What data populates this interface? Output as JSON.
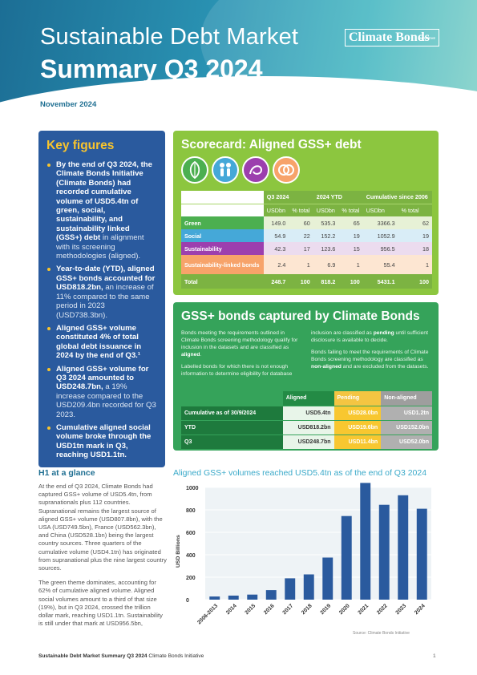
{
  "header": {
    "title_line1": "Sustainable Debt Market",
    "title_line2": "Summary Q3 2024",
    "date": "November 2024",
    "logo": "Climate Bonds",
    "logo_small": "INITIATIVE"
  },
  "key_figures": {
    "title": "Key figures",
    "items": [
      {
        "bold": "By the end of Q3 2024, the Climate Bonds Initiative (Climate Bonds) had recorded cumulative volume of USD5.4tn of green, social, sustainability, and sustainability linked (GSS+) debt",
        "normal": " in alignment with its screening methodologies (aligned)."
      },
      {
        "bold": "Year-to-date (YTD), aligned GSS+ bonds accounted for USD818.2bn,",
        "normal": " an increase of 11% compared to the same period in 2023 (USD738.3bn)."
      },
      {
        "bold": "Aligned GSS+ volume constituted 4% of total global debt issuance in 2024 by the end of Q3.¹",
        "normal": ""
      },
      {
        "bold": "Aligned GSS+ volume for Q3 2024 amounted to USD248.7bn,",
        "normal": " a 19% increase compared to the USD209.4bn recorded for Q3 2023."
      },
      {
        "bold": "Cumulative aligned social volume broke through the USD1tn mark in Q3, reaching USD1.1tn.",
        "normal": ""
      }
    ]
  },
  "scorecard": {
    "title": "Scorecard: Aligned GSS+ debt",
    "icons": [
      "leaf-icon",
      "people-icon",
      "sustainability-swirl-icon",
      "linked-rings-icon"
    ],
    "colors": {
      "green": "#4caf50",
      "social": "#45a8d8",
      "sustainability": "#9c3fae",
      "sll": "#f7a36a"
    },
    "group_headers": [
      "Q3 2024",
      "2024 YTD",
      "Cumulative since 2006"
    ],
    "sub_headers": [
      "USDbn",
      "% total",
      "USDbn",
      "% total",
      "USDbn",
      "% total"
    ],
    "rows": [
      {
        "label": "Green",
        "values": [
          "149.0",
          "60",
          "535.3",
          "65",
          "3366.3",
          "62"
        ]
      },
      {
        "label": "Social",
        "values": [
          "54.9",
          "22",
          "152.2",
          "19",
          "1052.9",
          "19"
        ]
      },
      {
        "label": "Sustainability",
        "values": [
          "42.3",
          "17",
          "123.6",
          "15",
          "956.5",
          "18"
        ]
      },
      {
        "label": "Sustainability-linked bonds",
        "values": [
          "2.4",
          "1",
          "6.9",
          "1",
          "55.4",
          "1"
        ]
      },
      {
        "label": "Total",
        "values": [
          "248.7",
          "100",
          "818.2",
          "100",
          "5431.1",
          "100"
        ]
      }
    ]
  },
  "captured": {
    "title": "GSS+ bonds captured by Climate Bonds",
    "col1_p1_a": "Bonds meeting the requirements outlined in Climate Bonds screening methodology qualify for inclusion in the datasets and are classified as ",
    "col1_p1_b": "aligned",
    "col1_p1_c": ".",
    "col1_p2": "Labelled bonds for which there is not enough information to determine eligibility for database",
    "col2_p1_a": "inclusion are classified as ",
    "col2_p1_b": "pending",
    "col2_p1_c": " until sufficient disclosure is available to decide.",
    "col2_p2_a": "Bonds failing to meet the requirements of Climate Bonds screening methodology are classified as ",
    "col2_p2_b": "non-aligned",
    "col2_p2_c": " and are excluded from the datasets.",
    "headers": [
      "Aligned",
      "Pending",
      "Non-aligned"
    ],
    "rows": [
      {
        "label": "Cumulative as of 30/9/2024",
        "values": [
          "USD5.4tn",
          "USD28.0bn",
          "USD1.2tn"
        ]
      },
      {
        "label": "YTD",
        "values": [
          "USD818.2bn",
          "USD19.6bn",
          "USD152.0bn"
        ]
      },
      {
        "label": "Q3",
        "values": [
          "USD248.7bn",
          "USD11.4bn",
          "USD52.0bn"
        ]
      }
    ]
  },
  "glance": {
    "title": "H1 at a glance",
    "p1": "At the end of Q3 2024, Climate Bonds had captured GSS+ volume of USD5.4tn, from supranationals plus 112 countries. Supranational remains the largest source of aligned GSS+ volume (USD807.8bn), with the USA (USD749.5bn), France (USD562.3bn), and China (USD528.1bn) being the largest country sources. Three quarters of the cumulative volume (USD4.1tn) has originated from supranational plus the nine largest country sources.",
    "p2": "The green theme dominates, accounting for 62% of cumulative aligned volume. Aligned social volumes amount to a third of that size (19%), but in Q3 2024, crossed the trillion dollar mark, reaching USD1.1tn. Sustainability is still under that mark at USD956.5bn,"
  },
  "chart_data": {
    "type": "bar",
    "title": "Aligned GSS+ volumes reached USD5.4tn as of the end of Q3 2024",
    "categories": [
      "2006-2013",
      "2014",
      "2015",
      "2016",
      "2017",
      "2018",
      "2019",
      "2020",
      "2021",
      "2022",
      "2023",
      "2024"
    ],
    "values": [
      28,
      36,
      45,
      85,
      190,
      225,
      375,
      745,
      1040,
      845,
      930,
      810
    ],
    "ylabel": "USD Billions",
    "ylim": [
      0,
      1000
    ],
    "yticks": [
      "0",
      "200",
      "400",
      "600",
      "800",
      "1000"
    ],
    "grid": true,
    "bar_color": "#2a5a9e",
    "source": "Source: Climate Bonds Initiative"
  },
  "footer": {
    "bold": "Sustainable Debt Market Summary Q3 2024",
    "normal": " Climate Bonds Initiative",
    "page": "1"
  }
}
